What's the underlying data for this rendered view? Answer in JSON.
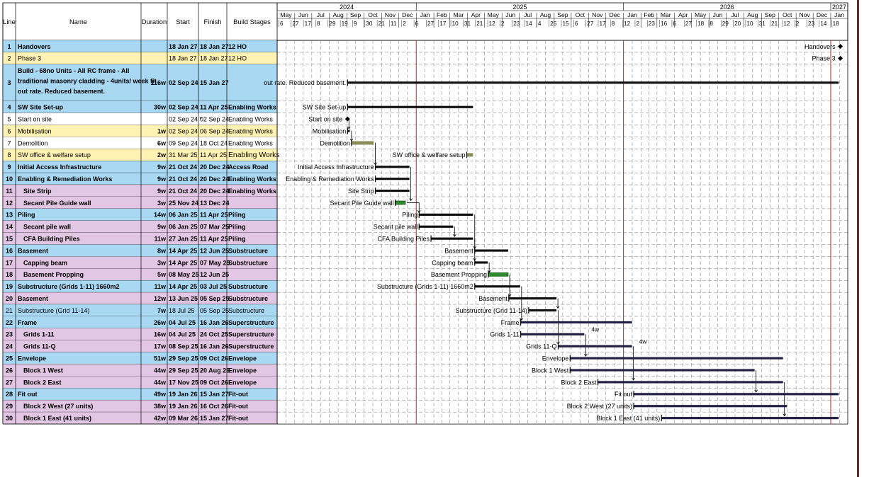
{
  "headers": {
    "line": "Line",
    "name": "Name",
    "duration": "Duration",
    "start": "Start",
    "finish": "Finish",
    "stages": "Build Stages"
  },
  "timeline": {
    "years": [
      {
        "label": "2024",
        "start": "2024-05-01",
        "end": "2025-01-01"
      },
      {
        "label": "2025",
        "start": "2025-01-01",
        "end": "2026-01-01"
      },
      {
        "label": "2026",
        "start": "2026-01-01",
        "end": "2027-01-01"
      },
      {
        "label": "2027",
        "start": "2027-01-01",
        "end": "2027-01-31"
      }
    ],
    "months": [
      "May",
      "Jun",
      "Jul",
      "Aug",
      "Sep",
      "Oct",
      "Nov",
      "Dec",
      "Jan",
      "Feb",
      "Mar",
      "Apr",
      "May",
      "Jun",
      "Jul",
      "Aug",
      "Sep",
      "Oct",
      "Nov",
      "Dec",
      "Jan",
      "Feb",
      "Mar",
      "Apr",
      "May",
      "Jun",
      "Jul",
      "Aug",
      "Sep",
      "Oct",
      "Nov",
      "Dec",
      "Jan"
    ],
    "day_ticks": [
      "6",
      "27",
      "17",
      "8",
      "29",
      "19",
      "9",
      "30",
      "21",
      "11",
      "2",
      "6",
      "27",
      "17",
      "10",
      "31",
      "21",
      "12",
      "2",
      "23",
      "14",
      "4",
      "25",
      "15",
      "6",
      "27",
      "17",
      "8",
      "12",
      "2",
      "23",
      "16",
      "6",
      "27",
      "18",
      "8",
      "29",
      "20",
      "10",
      "31",
      "21",
      "12",
      "2",
      "23",
      "14",
      "18"
    ],
    "range": {
      "start": "2024-05-01",
      "end": "2027-01-31"
    },
    "red_lines": [
      "2025-01-01",
      "2026-01-01",
      "2027-01-01"
    ],
    "colors": {
      "grid": "#777777",
      "red_line": "#d81e1e",
      "task_bar": "#111111",
      "secondary_bar": "#202044",
      "green_bar": "#2e8b2e",
      "olive_bar": "#8c8c5a",
      "summary_blue": "#6f8fe0",
      "row_blue": "#a9d8f3",
      "row_yellow": "#fff2b3",
      "row_pink": "#e3c6e3",
      "row_white": "#ffffff"
    }
  },
  "tasks": [
    {
      "line": "1",
      "name": "Handovers",
      "duration": "",
      "start": "18 Jan 27",
      "finish": "18 Jan 27",
      "stage": "12 HO",
      "bold": true,
      "color": "blue",
      "s": "2027-01-18",
      "f": "2027-01-18",
      "milestone": true,
      "bar_label": "Handovers"
    },
    {
      "line": "2",
      "name": "Phase 3",
      "duration": "",
      "start": "18 Jan 27",
      "finish": "18 Jan 27",
      "stage": "12 HO",
      "bold": false,
      "color": "yellow",
      "s": "2027-01-18",
      "f": "2027-01-18",
      "milestone": true,
      "bar_label": "Phase 3"
    },
    {
      "line": "3",
      "name": "Build - 68no Units - All RC frame - All traditional masonry cladding - 4units/ week fit out rate. Reduced basement.",
      "name_lines": [
        "Build - 68no Units - All RC frame - All",
        "traditional masonry cladding - 4units/ week fit",
        "out rate. Reduced basement."
      ],
      "duration": "116w",
      "start": "02 Sep 24",
      "finish": "15 Jan 27",
      "stage": "",
      "bold": true,
      "color": "blue",
      "s": "2024-09-02",
      "f": "2027-01-15",
      "bar_label": "out rate. Reduced basement."
    },
    {
      "line": "4",
      "name": "SW Site Set-up",
      "duration": "30w",
      "start": "02 Sep 24",
      "finish": "11 Apr 25",
      "stage": "Enabling Works",
      "bold": true,
      "color": "blue",
      "s": "2024-09-02",
      "f": "2025-04-11",
      "bar_label": "SW Site Set-up"
    },
    {
      "line": "5",
      "name": "Start on site",
      "duration": "",
      "start": "02 Sep 24 *",
      "finish": "02 Sep 24",
      "stage": "Enabling Works",
      "bold": false,
      "color": "white",
      "s": "2024-09-02",
      "f": "2024-09-02",
      "milestone": true,
      "bar_label": "Start on site"
    },
    {
      "line": "6",
      "name": "Mobilisation",
      "duration": "1w",
      "start": "02 Sep 24",
      "finish": "06 Sep 24",
      "stage": "Enabling Works",
      "bold": false,
      "color": "yellow",
      "s": "2024-09-02",
      "f": "2024-09-06",
      "bar_label": "Mobilisation"
    },
    {
      "line": "7",
      "name": "Demolition",
      "duration": "6w",
      "start": "09 Sep 24",
      "finish": "18 Oct 24",
      "stage": "Enabling Works",
      "bold": false,
      "color": "white",
      "s": "2024-09-09",
      "f": "2024-10-18",
      "bar": "olive",
      "bar_label": "Demolition"
    },
    {
      "line": "8",
      "name": "SW office & welfare setup",
      "duration": "2w",
      "start": "31 Mar 25",
      "finish": "11 Apr 25",
      "stage": "Enabling Works",
      "bold": false,
      "color": "yellow",
      "stage_big": true,
      "s": "2025-03-31",
      "f": "2025-04-11",
      "bar": "olive",
      "bar_label": "SW office & welfare setup"
    },
    {
      "line": "9",
      "name": "Initial Access Infrastructure",
      "duration": "9w",
      "start": "21 Oct 24",
      "finish": "20 Dec 24",
      "stage": "Access Road",
      "bold": true,
      "color": "blue",
      "s": "2024-10-21",
      "f": "2024-12-20",
      "bar_label": "Initial Access Infrastructure"
    },
    {
      "line": "10",
      "name": "Enabling & Remediation Works",
      "duration": "9w",
      "start": "21 Oct 24",
      "finish": "20 Dec 24",
      "stage": "Enabling Works",
      "bold": true,
      "color": "blue",
      "s": "2024-10-21",
      "f": "2024-12-20",
      "bar_label": "Enabling & Remediation Works"
    },
    {
      "line": "11",
      "name": "Site Strip",
      "duration": "9w",
      "start": "21 Oct 24",
      "finish": "20 Dec 24",
      "stage": "Enabling Works",
      "bold": true,
      "color": "pink",
      "indent": true,
      "s": "2024-10-21",
      "f": "2024-12-20",
      "bar_label": "Site Strip"
    },
    {
      "line": "12",
      "name": "Secant Pile Guide wall",
      "duration": "3w",
      "start": "25 Nov 24",
      "finish": "13 Dec 24",
      "stage": "",
      "bold": true,
      "color": "pink",
      "indent": true,
      "s": "2024-11-25",
      "f": "2024-12-13",
      "bar": "green",
      "bar_label": "Secant Pile Guide wall"
    },
    {
      "line": "13",
      "name": "Piling",
      "duration": "14w",
      "start": "06 Jan 25",
      "finish": "11 Apr 25",
      "stage": "Piling",
      "bold": true,
      "color": "blue",
      "s": "2025-01-06",
      "f": "2025-04-11",
      "bar_label": "Piling"
    },
    {
      "line": "14",
      "name": "Secant pile wall",
      "duration": "9w",
      "start": "06 Jan 25",
      "finish": "07 Mar 25",
      "stage": "Piling",
      "bold": true,
      "color": "pink",
      "indent": true,
      "s": "2025-01-06",
      "f": "2025-03-07",
      "bar_label": "Secant pile wall"
    },
    {
      "line": "15",
      "name": "CFA Building Piles",
      "duration": "11w",
      "start": "27 Jan 25",
      "finish": "11 Apr 25",
      "stage": "Piling",
      "bold": true,
      "color": "pink",
      "indent": true,
      "s": "2025-01-27",
      "f": "2025-04-11",
      "bar_label": "CFA Building Piles"
    },
    {
      "line": "16",
      "name": "Basement",
      "duration": "8w",
      "start": "14 Apr 25",
      "finish": "12 Jun 25",
      "stage": "Substructure",
      "bold": true,
      "color": "blue",
      "s": "2025-04-14",
      "f": "2025-06-12",
      "bar_label": "Basement"
    },
    {
      "line": "17",
      "name": "Capping beam",
      "duration": "3w",
      "start": "14 Apr 25",
      "finish": "07 May 25",
      "stage": "Substructure",
      "bold": true,
      "color": "pink",
      "indent": true,
      "s": "2025-04-14",
      "f": "2025-05-07",
      "bar_label": "Capping beam"
    },
    {
      "line": "18",
      "name": "Basement Propping",
      "duration": "5w",
      "start": "08 May 25",
      "finish": "12 Jun 25",
      "stage": "",
      "bold": true,
      "color": "pink",
      "indent": true,
      "s": "2025-05-08",
      "f": "2025-06-12",
      "bar": "green",
      "bar_label": "Basement Propping"
    },
    {
      "line": "19",
      "name": "Substructure (Grids 1-11) 1660m2",
      "duration": "11w",
      "start": "14 Apr 25",
      "finish": "03 Jul 25",
      "stage": "Substructure",
      "bold": true,
      "color": "blue",
      "s": "2025-04-14",
      "f": "2025-07-03",
      "bar_label": "Substructure (Grids 1-11) 1660m2"
    },
    {
      "line": "20",
      "name": "Basement",
      "duration": "12w",
      "start": "13 Jun 25",
      "finish": "05 Sep 25",
      "stage": "Substructure",
      "bold": true,
      "color": "pink",
      "s": "2025-06-13",
      "f": "2025-09-05",
      "bar_label": "Basement"
    },
    {
      "line": "21",
      "name": "Substructure (Grid 11-14)",
      "duration": "7w",
      "start": "18 Jul 25",
      "finish": "05 Sep 25",
      "stage": "Substructure",
      "bold": false,
      "color": "blue",
      "s": "2025-07-18",
      "f": "2025-09-05",
      "bar_label": "Substructure (Grid  11-14)"
    },
    {
      "line": "22",
      "name": "Frame",
      "duration": "26w",
      "start": "04 Jul 25",
      "finish": "16 Jan 26",
      "stage": "Superstructure",
      "bold": true,
      "color": "blue",
      "s": "2025-07-04",
      "f": "2026-01-16",
      "bar": "dark",
      "bar_label": "Frame"
    },
    {
      "line": "23",
      "name": "Grids 1-11",
      "duration": "16w",
      "start": "04 Jul 25",
      "finish": "24 Oct 25",
      "stage": "Superstructure",
      "bold": true,
      "color": "pink",
      "indent": true,
      "s": "2025-07-04",
      "f": "2025-10-24",
      "bar": "dark",
      "bar_label": "Grids 1-11",
      "lag": "4w"
    },
    {
      "line": "24",
      "name": "Grids 11-Q",
      "duration": "17w",
      "start": "08 Sep 25",
      "finish": "16 Jan 26",
      "stage": "Superstructure",
      "bold": true,
      "color": "pink",
      "indent": true,
      "s": "2025-09-08",
      "f": "2026-01-16",
      "bar": "dark",
      "bar_label": "Grids 11-Q",
      "lag": "4w"
    },
    {
      "line": "25",
      "name": "Envelope",
      "duration": "51w",
      "start": "29 Sep 25",
      "finish": "09 Oct 26",
      "stage": "Envelope",
      "bold": true,
      "color": "blue",
      "s": "2025-09-29",
      "f": "2026-10-09",
      "bar": "dark",
      "bar_label": "Envelope"
    },
    {
      "line": "26",
      "name": "Block 1 West",
      "duration": "44w",
      "start": "29 Sep 25",
      "finish": "20 Aug 26",
      "stage": "Envelope",
      "bold": true,
      "color": "pink",
      "indent": true,
      "s": "2025-09-29",
      "f": "2026-08-20",
      "bar": "dark",
      "bar_label": "Block 1 West"
    },
    {
      "line": "27",
      "name": "Block 2 East",
      "duration": "44w",
      "start": "17 Nov 25",
      "finish": "09 Oct 26",
      "stage": "Envelope",
      "bold": true,
      "color": "pink",
      "indent": true,
      "s": "2025-11-17",
      "f": "2026-10-09",
      "bar": "dark",
      "bar_label": "Block 2 East"
    },
    {
      "line": "28",
      "name": "Fit out",
      "duration": "49w",
      "start": "19 Jan 26",
      "finish": "15 Jan 27",
      "stage": "Fit-out",
      "bold": true,
      "color": "blue",
      "s": "2026-01-19",
      "f": "2027-01-15",
      "bar": "dark",
      "bar_label": "Fit out"
    },
    {
      "line": "29",
      "name": "Block 2 West (27 units)",
      "duration": "38w",
      "start": "19 Jan 26",
      "finish": "16 Oct 26",
      "stage": "Fit-out",
      "bold": true,
      "color": "pink",
      "indent": true,
      "s": "2026-01-19",
      "f": "2026-10-16",
      "bar": "dark",
      "bar_label": "Block 2 West (27 units)"
    },
    {
      "line": "30",
      "name": "Block 1 East (41 units)",
      "duration": "42w",
      "start": "09 Mar 26",
      "finish": "15 Jan 27",
      "stage": "Fit-out",
      "bold": true,
      "color": "pink",
      "indent": true,
      "s": "2026-03-09",
      "f": "2027-01-15",
      "bar": "dark",
      "bar_label": "Block 1 East (41 units)"
    }
  ],
  "links": [
    [
      "5",
      "6"
    ],
    [
      "6",
      "7"
    ],
    [
      "7",
      "9"
    ],
    [
      "9",
      "12"
    ],
    [
      "12",
      "13"
    ],
    [
      "13",
      "16"
    ],
    [
      "14",
      "15"
    ],
    [
      "15",
      "17"
    ],
    [
      "17",
      "18"
    ],
    [
      "18",
      "20"
    ],
    [
      "20",
      "21"
    ],
    [
      "19",
      "22"
    ],
    [
      "21",
      "24"
    ],
    [
      "23",
      "25"
    ],
    [
      "24",
      "27"
    ],
    [
      "26",
      "28"
    ],
    [
      "27",
      "30"
    ]
  ]
}
